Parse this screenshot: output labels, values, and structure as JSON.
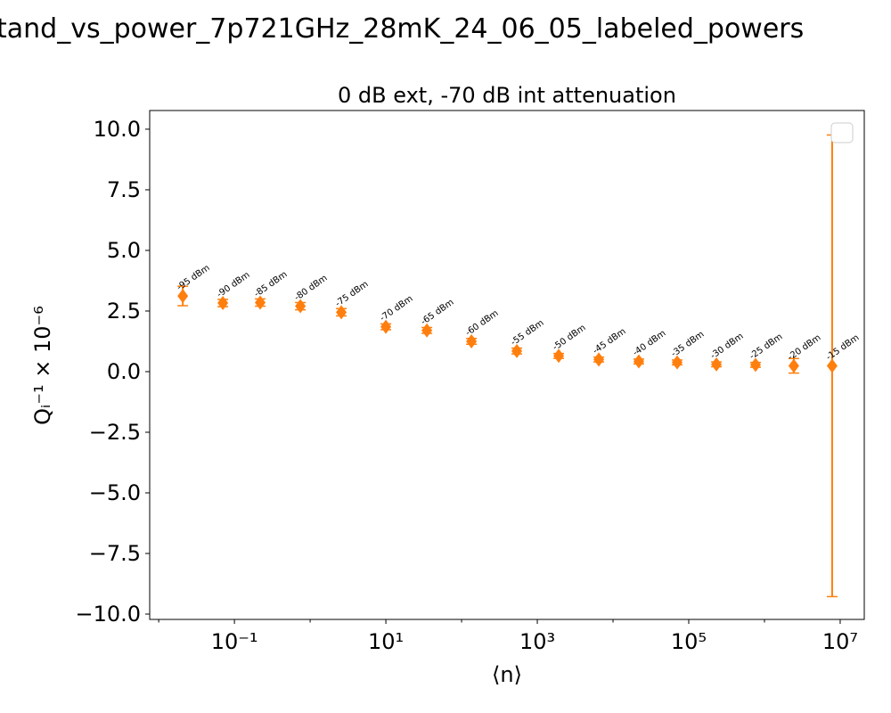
{
  "chart_data": {
    "type": "errorbar",
    "title": "tand_vs_power_7p721GHz_28mK_24_06_05_labeled_powers",
    "subtitle": "0 dB ext, -70 dB int attenuation",
    "xlabel": "⟨n⟩",
    "ylabel": "Qᵢ⁻¹ × 10⁻⁶",
    "xscale": "log",
    "xlim": [
      0.0076,
      20800000
    ],
    "ylim": [
      -10.22,
      10.77
    ],
    "xticks": [
      {
        "value": 0.1,
        "label": "10⁻¹"
      },
      {
        "value": 10,
        "label": "10¹"
      },
      {
        "value": 1000,
        "label": "10³"
      },
      {
        "value": 100000,
        "label": "10⁵"
      },
      {
        "value": 10000000,
        "label": "10⁷"
      }
    ],
    "yticks": [
      {
        "value": 10,
        "label": "10.0"
      },
      7.5,
      {
        "value": 5,
        "label": "5.0"
      },
      2.5,
      {
        "value": 0,
        "label": "0.0"
      },
      {
        "value": -2.5,
        "label": "−2.5"
      },
      {
        "value": -5,
        "label": "−5.0"
      },
      {
        "value": -7.5,
        "label": "−7.5"
      },
      {
        "value": -10,
        "label": "−10.0"
      }
    ],
    "grid": false,
    "legend": "upper right",
    "color": "#ff7f0e",
    "x": [
      0.0208,
      0.0703,
      0.219,
      0.743,
      2.58,
      10,
      34.8,
      135,
      536,
      1915,
      6490,
      21900,
      70300,
      232000,
      762000,
      2440000,
      7830000
    ],
    "values": [
      3.12,
      2.83,
      2.85,
      2.7,
      2.45,
      1.85,
      1.7,
      1.25,
      0.85,
      0.65,
      0.5,
      0.42,
      0.38,
      0.3,
      0.28,
      0.24,
      0.24
    ],
    "errors": [
      0.4,
      0.15,
      0.15,
      0.15,
      0.15,
      0.12,
      0.12,
      0.12,
      0.12,
      0.1,
      0.1,
      0.1,
      0.1,
      0.1,
      0.1,
      0.3,
      9.52
    ],
    "annotations": [
      "-95 dBm",
      "-90 dBm",
      "-85 dBm",
      "-80 dBm",
      "-75 dBm",
      "-70 dBm",
      "-65 dBm",
      "-60 dBm",
      "-55 dBm",
      "-50 dBm",
      "-45 dBm",
      "-40 dBm",
      "-35 dBm",
      "-30 dBm",
      "-25 dBm",
      "-20 dBm",
      "-15 dBm"
    ]
  }
}
